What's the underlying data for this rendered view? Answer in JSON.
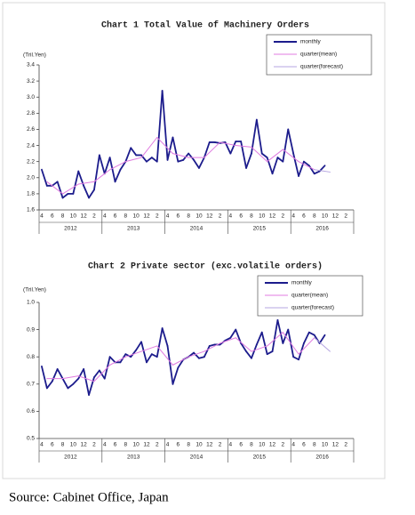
{
  "chart_data": [
    {
      "type": "line",
      "title": "Chart 1 Total Value of Machinery Orders",
      "y_label": "(Tril.Yen)",
      "categories": [
        "4",
        null,
        "6",
        null,
        "8",
        null,
        "10",
        null,
        "12",
        null,
        "2",
        null,
        "4",
        null,
        "6",
        null,
        "8",
        null,
        "10",
        null,
        "12",
        null,
        "2",
        null,
        "4",
        null,
        "6",
        null,
        "8",
        null,
        "10",
        null,
        "12",
        null,
        "2",
        null,
        "4",
        null,
        "6",
        null,
        "8",
        null,
        "10",
        null,
        "12",
        null,
        "2",
        null,
        "4",
        null,
        "6",
        null,
        "8",
        null,
        "10",
        null,
        "12",
        null,
        "2",
        null
      ],
      "year_groups": [
        "2012",
        "2013",
        "2014",
        "2015",
        "2016"
      ],
      "ylim": [
        1.6,
        3.4
      ],
      "yticks": [
        1.6,
        1.8,
        {
          "value": 2,
          "label": "2.0"
        },
        2.2,
        2.4,
        2.6,
        2.8,
        {
          "value": 3,
          "label": "3.0"
        },
        3.2,
        3.4
      ],
      "legend": "upper right",
      "series": [
        {
          "name": "monthly",
          "color": "#1c1c8c",
          "values": [
            2.1,
            1.9,
            1.9,
            1.95,
            1.75,
            1.8,
            1.8,
            2.08,
            1.9,
            1.75,
            1.85,
            2.28,
            2.05,
            2.25,
            1.95,
            2.1,
            2.2,
            2.37,
            2.28,
            2.28,
            2.2,
            2.25,
            2.2,
            3.08,
            2.22,
            2.5,
            2.2,
            2.22,
            2.3,
            2.22,
            2.12,
            2.25,
            2.44,
            2.44,
            2.43,
            2.44,
            2.3,
            2.45,
            2.45,
            2.12,
            2.3,
            2.72,
            2.3,
            2.25,
            2.05,
            2.25,
            2.2,
            2.6,
            2.3,
            2.02,
            2.2,
            2.15,
            2.05,
            2.08,
            2.15,
            null,
            null,
            null,
            null,
            null
          ]
        },
        {
          "name": "quarter(mean)",
          "color": "#e07be0",
          "values": [
            null,
            1.95,
            null,
            null,
            1.8,
            null,
            null,
            1.92,
            null,
            null,
            1.95,
            null,
            null,
            2.1,
            null,
            null,
            2.2,
            null,
            null,
            2.25,
            null,
            null,
            2.5,
            null,
            null,
            2.3,
            null,
            null,
            2.25,
            null,
            null,
            2.25,
            null,
            null,
            2.44,
            null,
            null,
            2.4,
            null,
            null,
            2.38,
            null,
            null,
            2.2,
            null,
            null,
            2.35,
            null,
            null,
            2.2,
            null,
            null,
            2.1,
            null,
            null,
            null,
            null,
            null,
            null,
            null
          ]
        },
        {
          "name": "quarter(forecast)",
          "color": "#b4a4e0",
          "values": [
            null,
            null,
            null,
            null,
            null,
            null,
            null,
            null,
            null,
            null,
            null,
            null,
            null,
            null,
            null,
            null,
            null,
            null,
            null,
            null,
            null,
            null,
            null,
            null,
            null,
            null,
            null,
            null,
            null,
            null,
            null,
            null,
            null,
            null,
            null,
            null,
            null,
            null,
            null,
            null,
            null,
            null,
            null,
            null,
            null,
            null,
            null,
            null,
            null,
            null,
            null,
            null,
            2.1,
            null,
            null,
            2.07,
            null,
            null,
            null,
            null
          ]
        }
      ]
    },
    {
      "type": "line",
      "title": "Chart 2 Private sector (exc.volatile orders)",
      "y_label": "(Tril.Yen)",
      "categories": [
        "4",
        null,
        "6",
        null,
        "8",
        null,
        "10",
        null,
        "12",
        null,
        "2",
        null,
        "4",
        null,
        "6",
        null,
        "8",
        null,
        "10",
        null,
        "12",
        null,
        "2",
        null,
        "4",
        null,
        "6",
        null,
        "8",
        null,
        "10",
        null,
        "12",
        null,
        "2",
        null,
        "4",
        null,
        "6",
        null,
        "8",
        null,
        "10",
        null,
        "12",
        null,
        "2",
        null,
        "4",
        null,
        "6",
        null,
        "8",
        null,
        "10",
        null,
        "12",
        null,
        "2",
        null
      ],
      "year_groups": [
        "2012",
        "2013",
        "2014",
        "2015",
        "2016"
      ],
      "ylim": [
        0.5,
        1.0
      ],
      "yticks": [
        0.5,
        0.6,
        0.7,
        0.8,
        0.9,
        {
          "value": 1,
          "label": "1.0"
        }
      ],
      "legend": "upper right",
      "series": [
        {
          "name": "monthly",
          "color": "#1c1c8c",
          "values": [
            0.765,
            0.685,
            0.71,
            0.755,
            0.72,
            0.685,
            0.7,
            0.72,
            0.755,
            0.66,
            0.725,
            0.75,
            0.72,
            0.8,
            0.78,
            0.78,
            0.81,
            0.8,
            0.825,
            0.855,
            0.78,
            0.81,
            0.8,
            0.905,
            0.84,
            0.7,
            0.76,
            0.79,
            0.8,
            0.815,
            0.795,
            0.8,
            0.84,
            0.845,
            0.845,
            0.86,
            0.87,
            0.9,
            0.85,
            0.82,
            0.795,
            0.845,
            0.89,
            0.81,
            0.82,
            0.935,
            0.85,
            0.9,
            0.8,
            0.79,
            0.85,
            0.89,
            0.88,
            0.85,
            0.88,
            null,
            null,
            null,
            null,
            null
          ]
        },
        {
          "name": "quarter(mean)",
          "color": "#e07be0",
          "values": [
            null,
            0.72,
            null,
            null,
            0.72,
            null,
            null,
            0.73,
            null,
            null,
            0.71,
            null,
            null,
            0.77,
            null,
            null,
            0.8,
            null,
            null,
            0.82,
            null,
            null,
            0.84,
            null,
            null,
            0.77,
            null,
            null,
            0.8,
            null,
            null,
            0.82,
            null,
            null,
            0.85,
            null,
            null,
            0.87,
            null,
            null,
            0.82,
            null,
            null,
            0.84,
            null,
            null,
            0.89,
            null,
            null,
            0.81,
            null,
            null,
            0.87,
            null,
            null,
            null,
            null,
            null,
            null,
            null
          ]
        },
        {
          "name": "quarter(forecast)",
          "color": "#b4a4e0",
          "values": [
            null,
            null,
            null,
            null,
            null,
            null,
            null,
            null,
            null,
            null,
            null,
            null,
            null,
            null,
            null,
            null,
            null,
            null,
            null,
            null,
            null,
            null,
            null,
            null,
            null,
            null,
            null,
            null,
            null,
            null,
            null,
            null,
            null,
            null,
            null,
            null,
            null,
            null,
            null,
            null,
            null,
            null,
            null,
            null,
            null,
            null,
            null,
            null,
            null,
            null,
            null,
            null,
            0.87,
            null,
            null,
            0.82,
            null,
            null,
            null,
            null
          ]
        }
      ]
    }
  ],
  "source": "Source: Cabinet Office, Japan"
}
